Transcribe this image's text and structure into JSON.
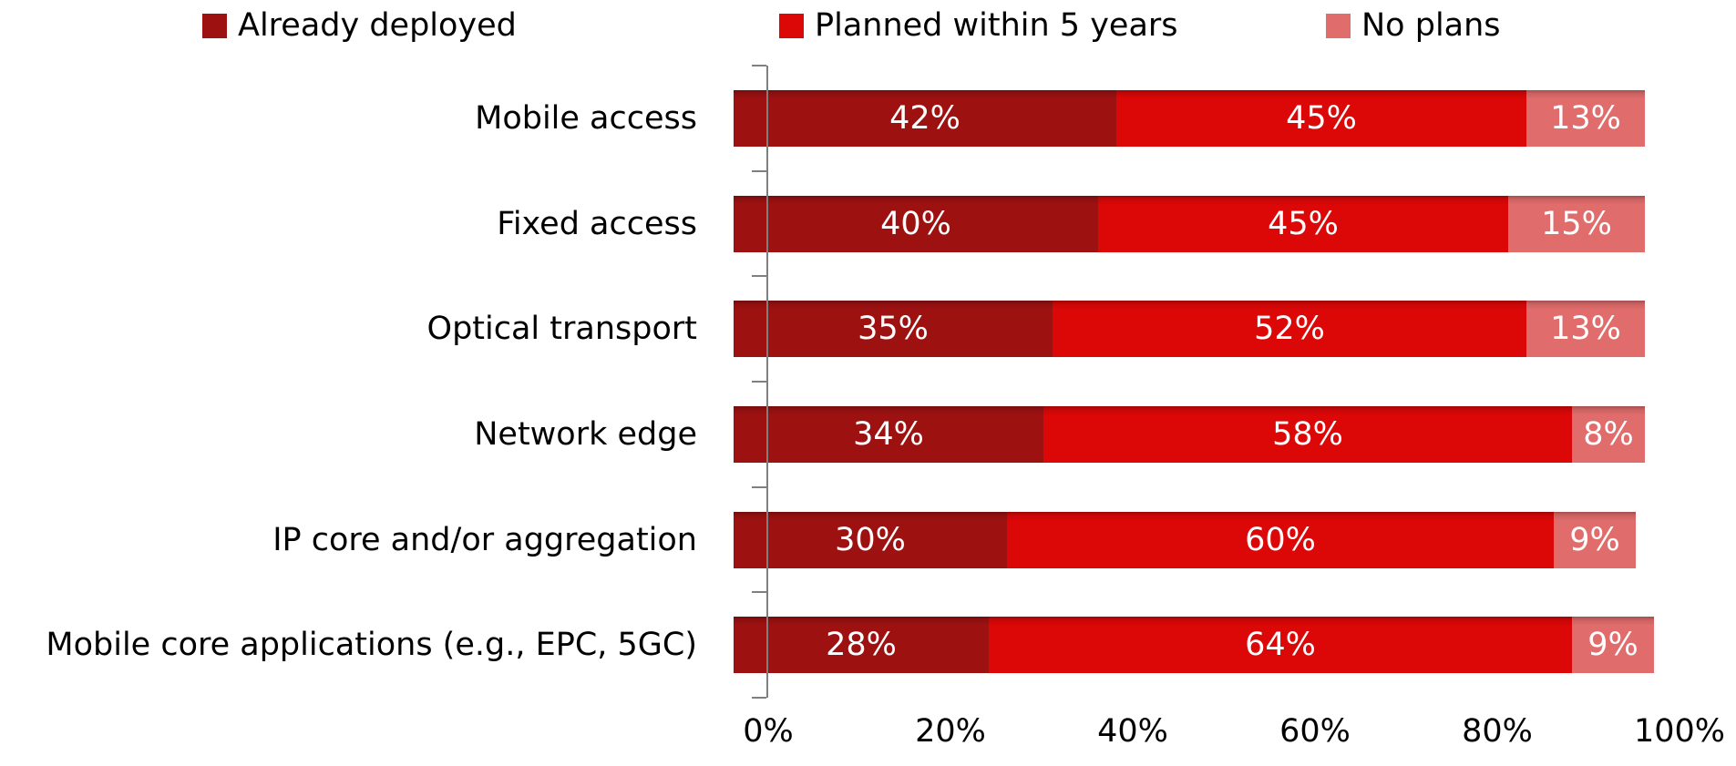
{
  "chart_data": {
    "type": "bar",
    "orientation": "horizontal",
    "stacked": true,
    "categories": [
      "Mobile access",
      "Fixed access",
      "Optical transport",
      "Network edge",
      "IP core and/or aggregation",
      "Mobile core applications (e.g., EPC, 5GC)"
    ],
    "series": [
      {
        "name": "Already deployed",
        "color": "#9E1111",
        "values": [
          42,
          40,
          35,
          34,
          30,
          28
        ]
      },
      {
        "name": "Planned within 5 years",
        "color": "#DC0707",
        "values": [
          45,
          45,
          52,
          58,
          60,
          64
        ]
      },
      {
        "name": "No plans",
        "color": "#E16C6C",
        "values": [
          13,
          15,
          13,
          8,
          9,
          9
        ]
      }
    ],
    "value_label_format": "{v}%",
    "value_label_color": "#FFFFFF",
    "x_ticks": [
      "0%",
      "20%",
      "40%",
      "60%",
      "80%",
      "100%"
    ],
    "xlim": [
      0,
      100
    ],
    "grid": false,
    "legend_position": "top",
    "axis_color": "#7F7F7F",
    "text_color": "#000000"
  }
}
